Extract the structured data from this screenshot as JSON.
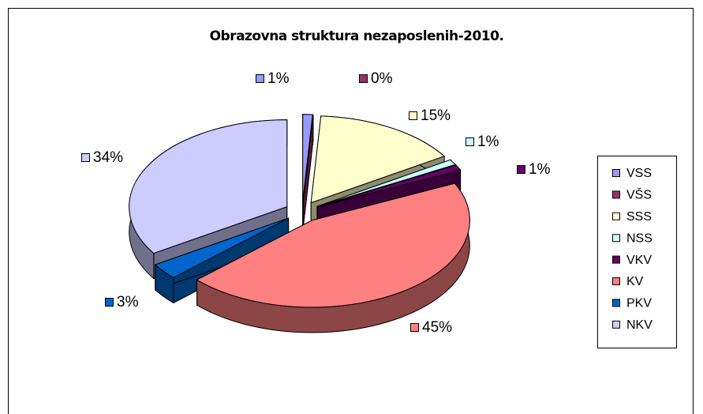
{
  "chart_data": {
    "type": "pie3d",
    "title": "Obrazovna struktura nezaposlenih-2010.",
    "categories": [
      "VSS",
      "VŠS",
      "SSS",
      "NSS",
      "VKV",
      "KV",
      "PKV",
      "NKV"
    ],
    "values": [
      1,
      0,
      15,
      1,
      1,
      45,
      3,
      34
    ],
    "value_labels": [
      "1%",
      "0%",
      "15%",
      "1%",
      "1%",
      "45%",
      "3%",
      "34%"
    ],
    "colors": [
      "#9999ff",
      "#993366",
      "#ffffcc",
      "#ccffff",
      "#660066",
      "#ff8080",
      "#0066cc",
      "#ccccff"
    ],
    "legend": "right"
  }
}
